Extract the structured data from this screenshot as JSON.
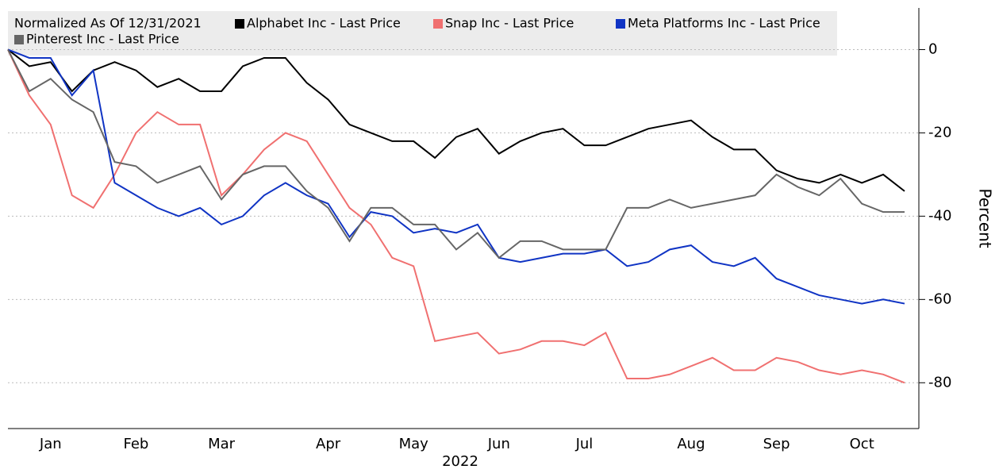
{
  "chart_data": {
    "type": "line",
    "subtitle": "Normalized As Of 12/31/2021",
    "xlabel": "2022",
    "ylabel": "Percent",
    "categories": [
      null,
      null,
      "Jan",
      null,
      null,
      null,
      "Feb",
      null,
      null,
      null,
      "Mar",
      null,
      null,
      null,
      null,
      "Apr",
      null,
      null,
      null,
      "May",
      null,
      null,
      null,
      "Jun",
      null,
      null,
      null,
      "Jul",
      null,
      null,
      null,
      null,
      "Aug",
      null,
      null,
      null,
      "Sep",
      null,
      null,
      null,
      "Oct",
      null,
      null
    ],
    "series": [
      {
        "name": "Alphabet Inc - Last Price",
        "color": "#000000",
        "values": [
          0,
          -4,
          -3,
          -10,
          -5,
          -3,
          -5,
          -9,
          -7,
          -10,
          -10,
          -4,
          -2,
          -2,
          -8,
          -12,
          -18,
          -20,
          -22,
          -22,
          -26,
          -21,
          -19,
          -25,
          -22,
          -20,
          -19,
          -23,
          -23,
          -21,
          -19,
          -18,
          -17,
          -21,
          -24,
          -24,
          -29,
          -31,
          -32,
          -30,
          -32,
          -30,
          -34
        ]
      },
      {
        "name": "Snap Inc - Last Price",
        "color": "#f07070",
        "values": [
          0,
          -11,
          -18,
          -35,
          -38,
          -30,
          -20,
          -15,
          -18,
          -18,
          -35,
          -30,
          -24,
          -20,
          -22,
          -30,
          -38,
          -42,
          -50,
          -52,
          -70,
          -69,
          -68,
          -73,
          -72,
          -70,
          -70,
          -71,
          -68,
          -79,
          -79,
          -78,
          -76,
          -74,
          -77,
          -77,
          -74,
          -75,
          -77,
          -78,
          -77,
          -78,
          -80
        ]
      },
      {
        "name": "Meta Platforms Inc - Last Price",
        "color": "#1034c4",
        "values": [
          0,
          -2,
          -2,
          -11,
          -5,
          -32,
          -35,
          -38,
          -40,
          -38,
          -42,
          -40,
          -35,
          -32,
          -35,
          -37,
          -45,
          -39,
          -40,
          -44,
          -43,
          -44,
          -42,
          -50,
          -51,
          -50,
          -49,
          -49,
          -48,
          -52,
          -51,
          -48,
          -47,
          -51,
          -52,
          -50,
          -55,
          -57,
          -59,
          -60,
          -61,
          -60,
          -61
        ]
      },
      {
        "name": "Pinterest Inc - Last Price",
        "color": "#666666",
        "values": [
          0,
          -10,
          -7,
          -12,
          -15,
          -27,
          -28,
          -32,
          -30,
          -28,
          -36,
          -30,
          -28,
          -28,
          -34,
          -38,
          -46,
          -38,
          -38,
          -42,
          -42,
          -48,
          -44,
          -50,
          -46,
          -46,
          -48,
          -48,
          -48,
          -38,
          -38,
          -36,
          -38,
          -37,
          -36,
          -35,
          -30,
          -33,
          -35,
          -31,
          -37,
          -39,
          -39
        ]
      }
    ],
    "ylim": [
      -91,
      10
    ],
    "yticks": [
      0,
      -20,
      -40,
      -60,
      -80
    ],
    "grid": true
  }
}
